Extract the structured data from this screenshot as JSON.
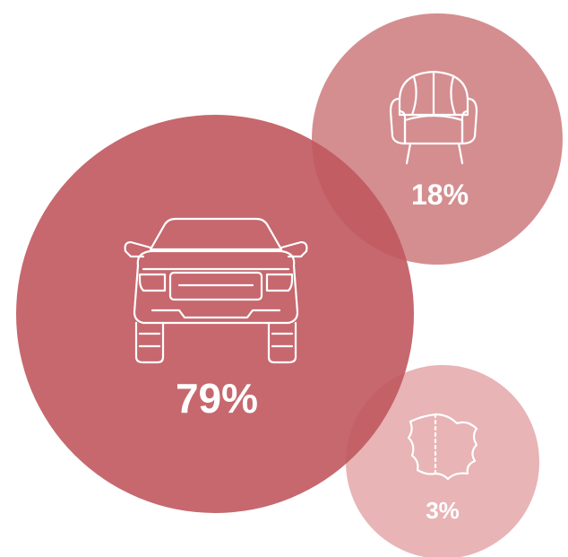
{
  "chart_data": {
    "type": "bubble",
    "title": "",
    "categories": [
      "car",
      "furniture",
      "leather"
    ],
    "values": [
      79,
      18,
      3
    ],
    "labels": [
      "79%",
      "18%",
      "3%"
    ],
    "icons": [
      "car-icon",
      "armchair-icon",
      "leather-hide-icon"
    ],
    "colors": [
      "#c0585e",
      "#cd7a7d",
      "#e3a4a6"
    ]
  }
}
